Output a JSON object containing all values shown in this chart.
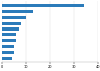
{
  "values": [
    34,
    13,
    10,
    8,
    7,
    6,
    6,
    5,
    5,
    4
  ],
  "bar_color": "#2b7bba",
  "background_color": "#ffffff",
  "xlim": [
    0,
    40
  ],
  "xticks": [
    0,
    10,
    20,
    30,
    40
  ],
  "bar_height": 0.55,
  "figsize": [
    1.0,
    0.71
  ],
  "dpi": 100
}
